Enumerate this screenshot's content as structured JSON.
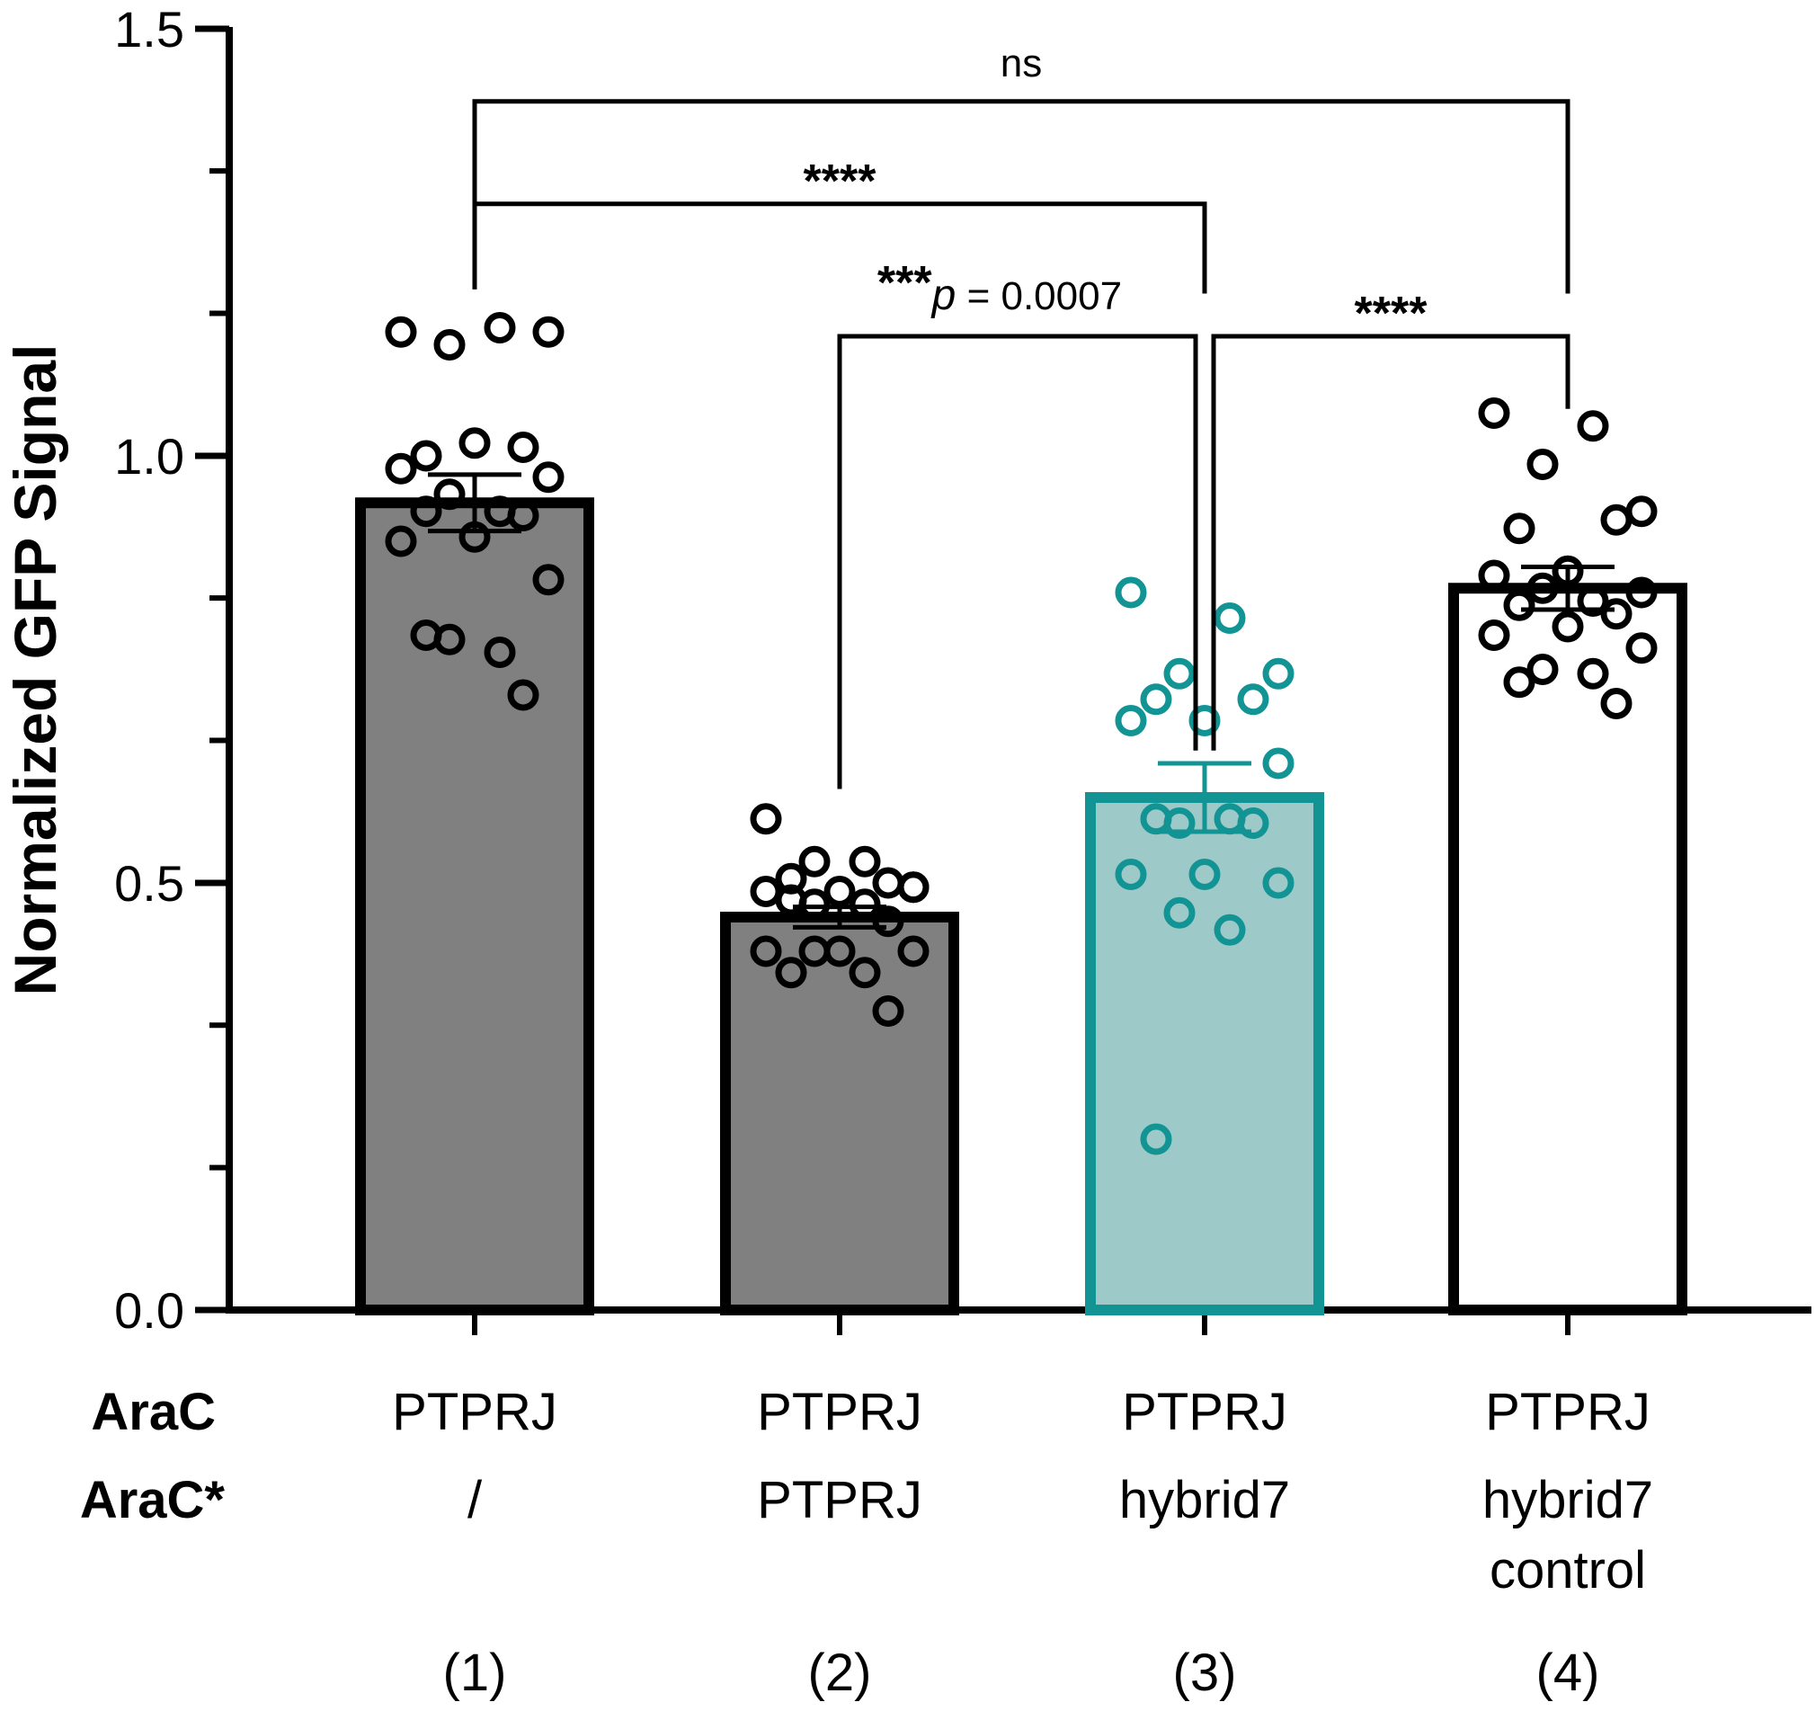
{
  "chart_data": {
    "type": "bar",
    "ylabel": "Normalized GFP Signal",
    "ylim": [
      0,
      1.5
    ],
    "yticks": [
      0.0,
      0.5,
      1.0,
      1.5
    ],
    "ytick_labels": [
      "0.0",
      "0.5",
      "1.0",
      "1.5"
    ],
    "y_minor_step": 0.1667,
    "row_labels": [
      "AraC",
      "AraC*"
    ],
    "categories": [
      {
        "number": "(1)",
        "arac": "PTPRJ",
        "arac_star": [
          "/"
        ],
        "mean": 0.945,
        "sem": 0.033,
        "fill": "#808080",
        "stroke": "#000000",
        "point_color": "#000000",
        "points": [
          1.145,
          1.15,
          1.13,
          1.145,
          1.0,
          1.01,
          1.015,
          0.985,
          0.975,
          0.955,
          0.935,
          0.935,
          0.93,
          0.905,
          0.9,
          0.855,
          0.785,
          0.77,
          0.79,
          0.72
        ]
      },
      {
        "number": "(2)",
        "arac": "PTPRJ",
        "arac_star": [
          "PTPRJ"
        ],
        "mean": 0.46,
        "sem": 0.012,
        "fill": "#808080",
        "stroke": "#000000",
        "point_color": "#000000",
        "points": [
          0.575,
          0.525,
          0.525,
          0.495,
          0.505,
          0.5,
          0.49,
          0.49,
          0.495,
          0.475,
          0.475,
          0.48,
          0.455,
          0.42,
          0.42,
          0.42,
          0.42,
          0.395,
          0.395,
          0.35
        ]
      },
      {
        "number": "(3)",
        "arac": "PTPRJ",
        "arac_star": [
          "hybrid7"
        ],
        "mean": 0.6,
        "sem": 0.04,
        "fill": "#9ec9c9",
        "stroke": "#139494",
        "point_color": "#139494",
        "points": [
          0.84,
          0.81,
          0.745,
          0.745,
          0.715,
          0.715,
          0.69,
          0.69,
          0.64,
          0.57,
          0.575,
          0.575,
          0.57,
          0.51,
          0.51,
          0.5,
          0.465,
          0.445,
          0.2
        ]
      },
      {
        "number": "(4)",
        "arac": "PTPRJ",
        "arac_star": [
          "hybrid7",
          "control"
        ],
        "mean": 0.845,
        "sem": 0.025,
        "fill": "#ffffff",
        "stroke": "#000000",
        "point_color": "#000000",
        "points": [
          1.05,
          1.035,
          0.99,
          0.935,
          0.915,
          0.925,
          0.865,
          0.86,
          0.84,
          0.845,
          0.83,
          0.825,
          0.815,
          0.8,
          0.79,
          0.775,
          0.75,
          0.745,
          0.735,
          0.71
        ]
      }
    ],
    "comparisons": [
      {
        "from": 0,
        "to": 3,
        "y": 1.415,
        "label": "ns"
      },
      {
        "from": 0,
        "to": 2,
        "y": 1.295,
        "label": "****"
      },
      {
        "from": 1,
        "to": 2,
        "y": 1.14,
        "label": "***",
        "p_symbol": "p",
        "p_text": " = 0.0007"
      },
      {
        "from": 2,
        "to": 3,
        "y": 1.14,
        "label": "****"
      }
    ]
  }
}
